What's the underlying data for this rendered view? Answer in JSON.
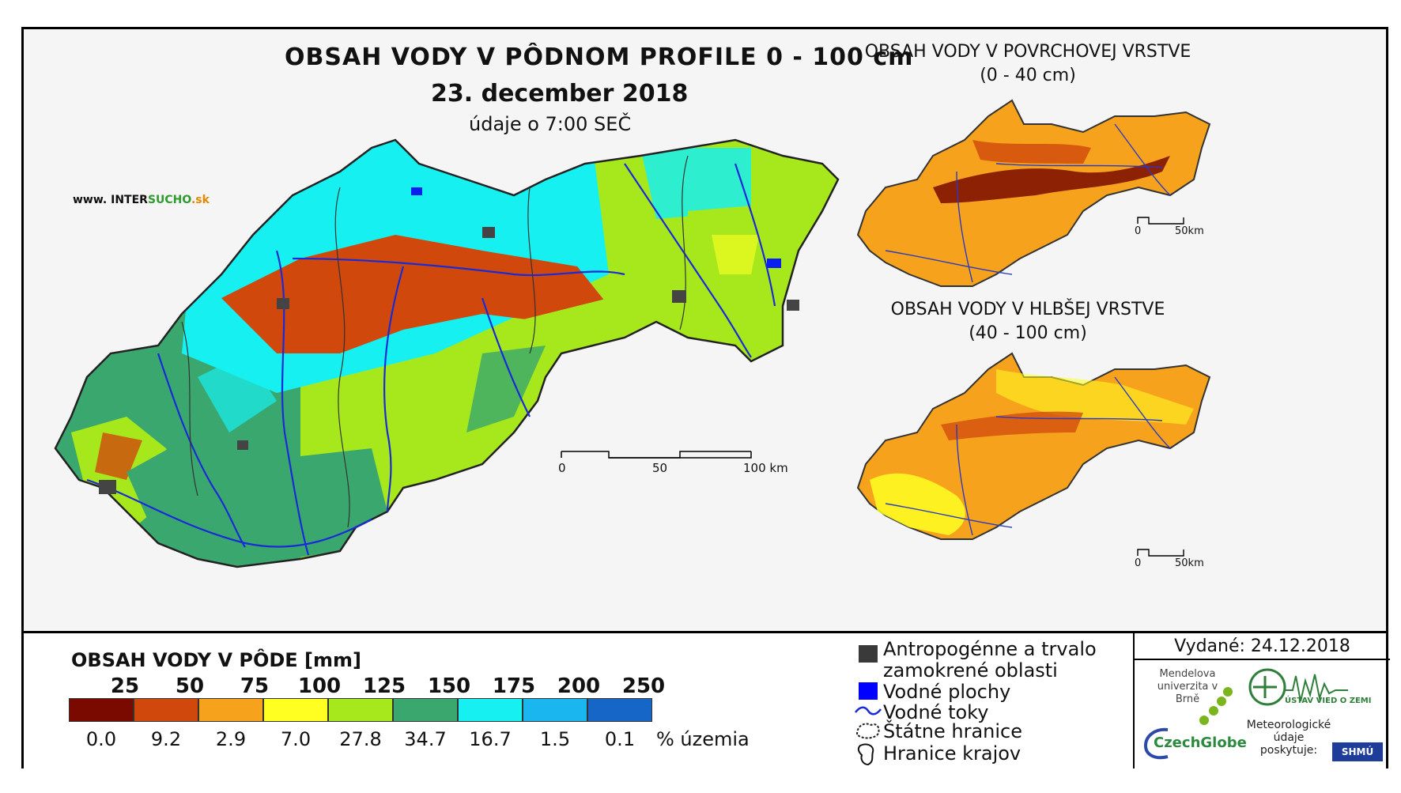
{
  "title": {
    "main": "OBSAH VODY V PÔDNOM PROFILE 0 - 100 cm",
    "date": "23. december 2018",
    "time": "údaje o 7:00 SEČ"
  },
  "website": {
    "prefix": "www. ",
    "part1": "INTER",
    "part2": "SUCHO",
    "suffix": ".sk"
  },
  "inset_top": {
    "title_line1": "OBSAH VODY V POVRCHOVEJ VRSTVE",
    "title_line2": "(0 - 40 cm)",
    "scale_start": "0",
    "scale_end": "50km"
  },
  "inset_bottom": {
    "title_line1": "OBSAH VODY V HLBŠEJ VRSTVE",
    "title_line2": "(40 - 100 cm)",
    "scale_start": "0",
    "scale_end": "50km"
  },
  "main_scale": {
    "start": "0",
    "mid": "50",
    "end": "100 km"
  },
  "legend": {
    "title": "OBSAH VODY V PÔDE [mm]",
    "thresholds": [
      "25",
      "50",
      "75",
      "100",
      "125",
      "150",
      "175",
      "200",
      "250"
    ],
    "class_colors": [
      "#7a0a00",
      "#d0480c",
      "#f7a21c",
      "#ffff22",
      "#a7e81c",
      "#3aa86e",
      "#17f0f0",
      "#1ab6f0",
      "#1566c7"
    ],
    "percentages": [
      "0.0",
      "9.2",
      "2.9",
      "7.0",
      "27.8",
      "34.7",
      "16.7",
      "1.5",
      "0.1"
    ],
    "percent_unit": "% územia"
  },
  "symbols": {
    "anthro_line1": "Antropogénne a trvalo",
    "anthro_line2": "zamokrené oblasti",
    "water_areas": "Vodné plochy",
    "water_streams": "Vodné toky",
    "state_border": "Štátne hranice",
    "region_border": "Hranice krajov"
  },
  "issued": "Vydané: 24.12.2018",
  "logos": {
    "mendel": "Mendelova univerzita v Brně",
    "czechglobe": "CzechGlobe",
    "ustav": "ÚSTAV VIED O ZEMI",
    "meteo": "Meteorologické údaje poskytuje:",
    "shmu": "SHMÚ"
  }
}
